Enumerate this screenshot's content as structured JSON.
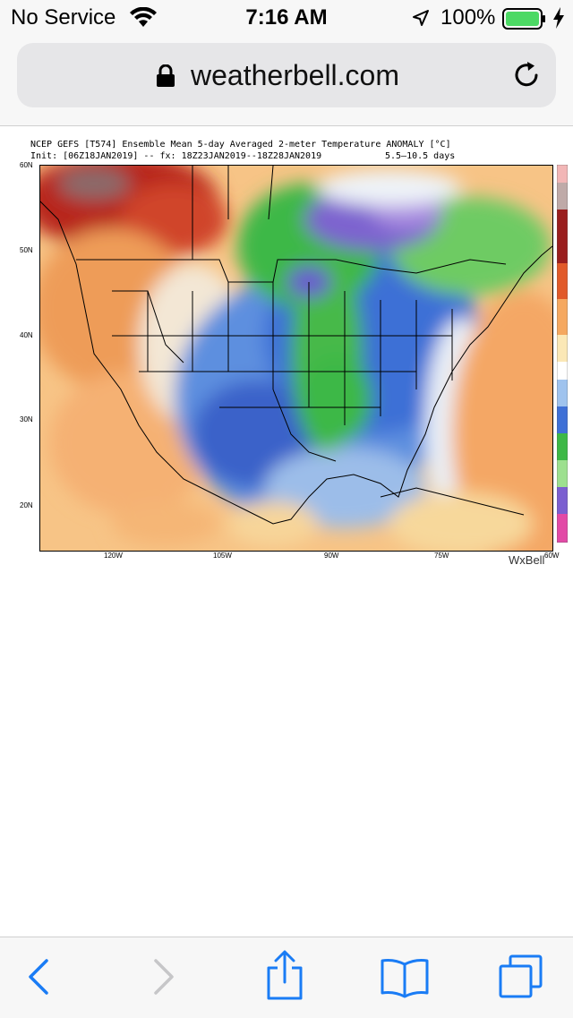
{
  "status_bar": {
    "carrier": "No Service",
    "time": "7:16 AM",
    "battery": "100%"
  },
  "address_bar": {
    "url": "weatherbell.com"
  },
  "map": {
    "title": "NCEP GEFS [T574] Ensemble Mean 5-day Averaged 2-meter Temperature ANOMALY [°C]",
    "init_line": "Init: [06Z18JAN2019] -- fx: 18Z23JAN2019--18Z28JAN2019",
    "range": "5.5–10.5 days",
    "lat_labels": [
      "60N",
      "50N",
      "40N",
      "30N",
      "20N"
    ],
    "lon_labels": [
      "120W",
      "105W",
      "90W",
      "75W",
      "60W"
    ],
    "brand": "WxBell"
  },
  "colors": {
    "accent": "#1a7cf5",
    "battery_green": "#4cd964"
  }
}
